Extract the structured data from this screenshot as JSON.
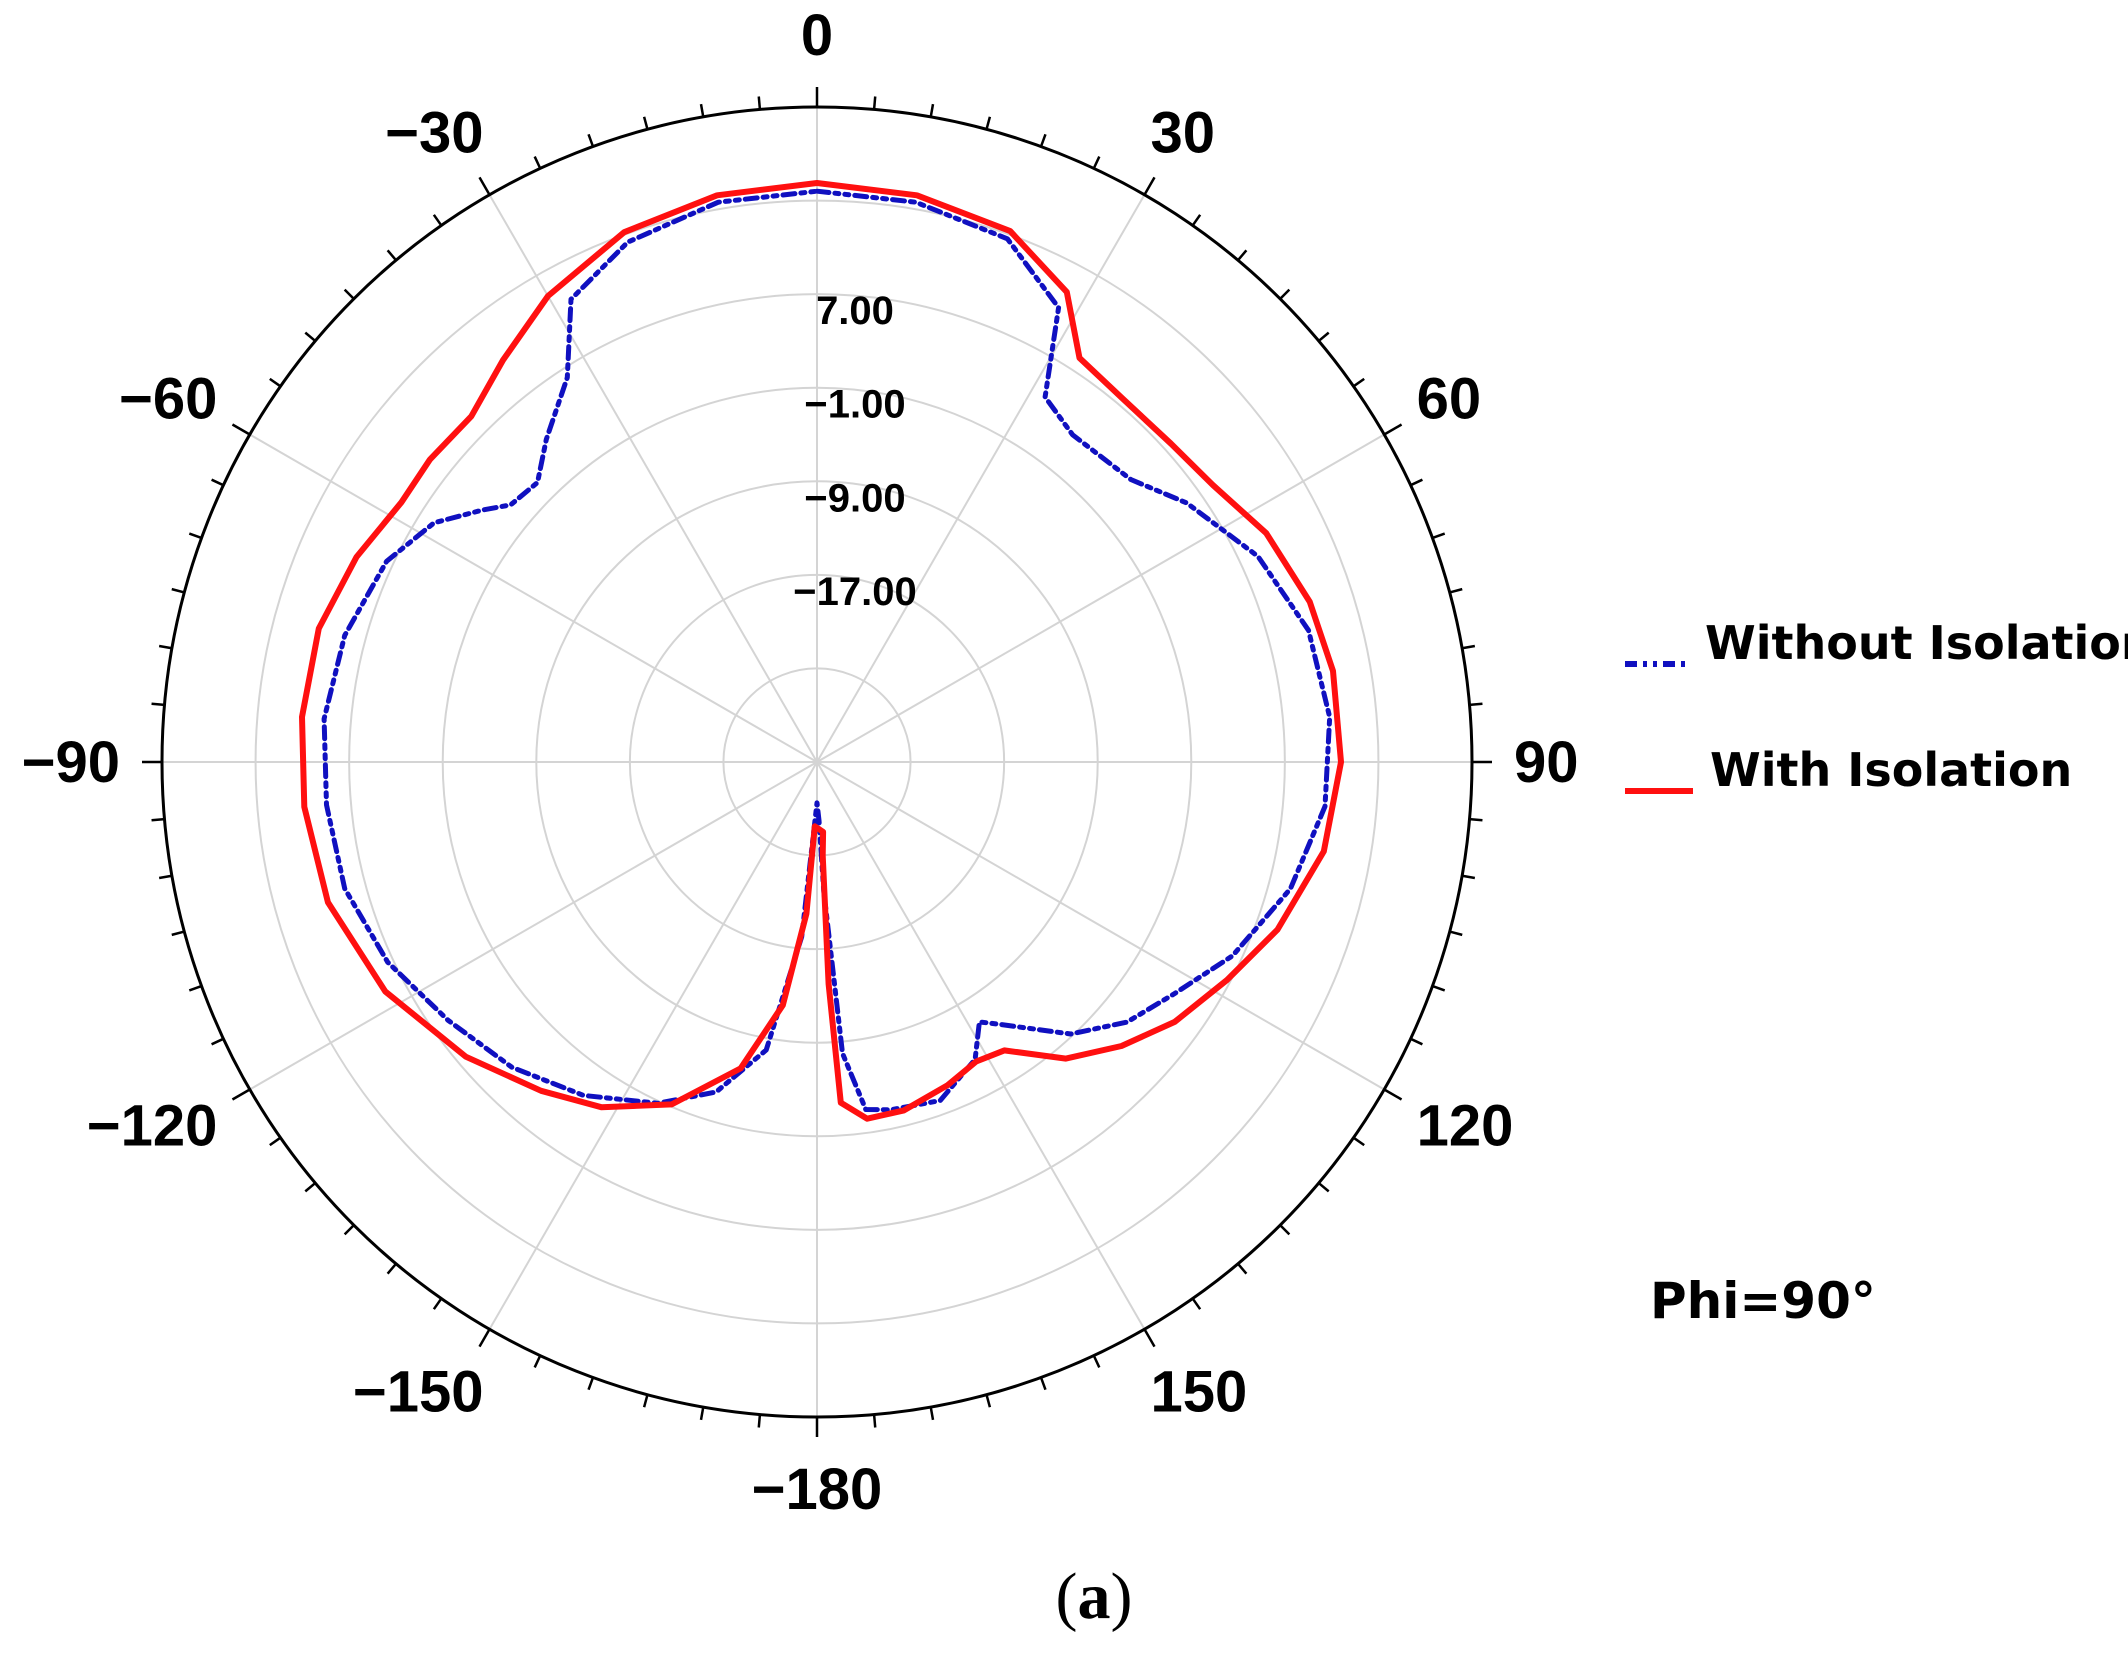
{
  "chart_data": {
    "type": "polar-line",
    "angular_axis": {
      "unit": "deg",
      "direction": "clockwise",
      "zero_at": "top",
      "tick_labels": [
        "0",
        "30",
        "60",
        "90",
        "120",
        "150",
        "−180",
        "−150",
        "−120",
        "−90",
        "−60",
        "−30"
      ],
      "tick_angles": [
        0,
        30,
        60,
        90,
        120,
        150,
        180,
        -150,
        -120,
        -90,
        -60,
        -30
      ]
    },
    "radial_axis": {
      "range": [
        -33,
        23
      ],
      "rings": [
        -25,
        -17,
        -9,
        -1,
        7,
        15,
        23
      ],
      "ring_labels": [
        {
          "value": 7,
          "text": "7.00"
        },
        {
          "value": -1,
          "text": "−1.00"
        },
        {
          "value": -9,
          "text": "−9.00"
        },
        {
          "value": -17,
          "text": "−17.00"
        }
      ]
    },
    "grid": true,
    "legend_position": "right",
    "series": [
      {
        "name": "Without Isolation",
        "color": "#1010c0",
        "style": "dash-dot-dot",
        "points": [
          [
            0,
            15.8
          ],
          [
            10,
            15.6
          ],
          [
            20,
            14.6
          ],
          [
            28,
            11.0
          ],
          [
            32,
            3.8
          ],
          [
            38,
            2.5
          ],
          [
            48,
            3.1
          ],
          [
            55,
            5.6
          ],
          [
            65,
            8.6
          ],
          [
            75,
            10.5
          ],
          [
            85,
            11.0
          ],
          [
            95,
            10.6
          ],
          [
            105,
            8.9
          ],
          [
            115,
            6.2
          ],
          [
            123,
            3.4
          ],
          [
            130,
            1.6
          ],
          [
            137,
            -1.2
          ],
          [
            145,
            -5.6
          ],
          [
            148,
            -6.8
          ],
          [
            152,
            -4.2
          ],
          [
            160,
            -2.2
          ],
          [
            168,
            -2.6
          ],
          [
            172,
            -3.0
          ],
          [
            175,
            -8.0
          ],
          [
            177,
            -22.0
          ],
          [
            178,
            -28.0
          ],
          [
            180,
            -29.5
          ],
          [
            -178,
            -28.0
          ],
          [
            -175,
            -18.0
          ],
          [
            -170,
            -8.0
          ],
          [
            -163,
            -3.5
          ],
          [
            -155,
            -0.8
          ],
          [
            -145,
            1.8
          ],
          [
            -135,
            3.9
          ],
          [
            -125,
            5.5
          ],
          [
            -115,
            7.5
          ],
          [
            -105,
            8.8
          ],
          [
            -95,
            9.1
          ],
          [
            -85,
            9.3
          ],
          [
            -75,
            8.8
          ],
          [
            -65,
            7.6
          ],
          [
            -58,
            5.6
          ],
          [
            -53,
            2.8
          ],
          [
            -50,
            1.2
          ],
          [
            -45,
            0.8
          ],
          [
            -40,
            3.0
          ],
          [
            -33,
            6.2
          ],
          [
            -28,
            11.8
          ],
          [
            -20,
            14.3
          ],
          [
            -10,
            15.6
          ],
          [
            0,
            15.8
          ]
        ]
      },
      {
        "name": "With Isolation",
        "color": "#ff1010",
        "style": "solid",
        "points": [
          [
            0,
            16.5
          ],
          [
            10,
            16.2
          ],
          [
            20,
            15.3
          ],
          [
            28,
            12.5
          ],
          [
            33,
            8.2
          ],
          [
            40,
            7.6
          ],
          [
            48,
            7.7
          ],
          [
            55,
            8.3
          ],
          [
            63,
            10.1
          ],
          [
            72,
            11.3
          ],
          [
            80,
            11.8
          ],
          [
            90,
            11.8
          ],
          [
            100,
            11.0
          ],
          [
            110,
            8.9
          ],
          [
            118,
            6.7
          ],
          [
            126,
            4.8
          ],
          [
            133,
            2.6
          ],
          [
            140,
            0.1
          ],
          [
            147,
            -3.6
          ],
          [
            152,
            -4.0
          ],
          [
            158,
            -3.2
          ],
          [
            166,
            -2.3
          ],
          [
            172,
            -2.2
          ],
          [
            176,
            -3.8
          ],
          [
            177,
            -14.0
          ],
          [
            176.5,
            -25.0
          ],
          [
            175,
            -27.0
          ],
          [
            -178,
            -27.5
          ],
          [
            -176,
            -20.0
          ],
          [
            -172,
            -12.0
          ],
          [
            -166,
            -6.0
          ],
          [
            -157,
            -1.2
          ],
          [
            -148,
            1.8
          ],
          [
            -140,
            3.7
          ],
          [
            -130,
            6.2
          ],
          [
            -118,
            8.8
          ],
          [
            -106,
            10.5
          ],
          [
            -95,
            11.0
          ],
          [
            -85,
            11.2
          ],
          [
            -75,
            11.1
          ],
          [
            -66,
            10.1
          ],
          [
            -58,
            8.9
          ],
          [
            -52,
            9.0
          ],
          [
            -45,
            8.8
          ],
          [
            -38,
            10.6
          ],
          [
            -30,
            13.0
          ],
          [
            -20,
            15.2
          ],
          [
            -10,
            16.2
          ],
          [
            0,
            16.5
          ]
        ]
      }
    ]
  },
  "annotations": {
    "note": "Phi=90°",
    "caption_open": "(",
    "caption_letter": "a",
    "caption_close": ")"
  }
}
